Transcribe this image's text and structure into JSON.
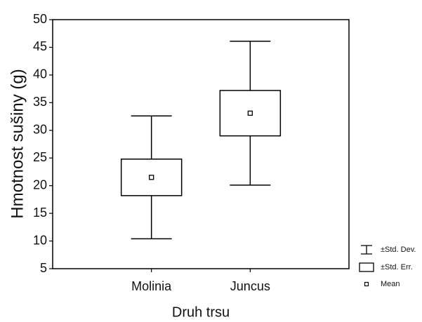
{
  "chart_data": {
    "type": "box",
    "y_label": "Hmotnost sušiny (g)",
    "x_label": "Druh trsu",
    "categories": [
      "Molinia",
      "Juncus"
    ],
    "mean": [
      21.5,
      33.1
    ],
    "se": [
      3.3,
      4.1
    ],
    "sd": [
      11.1,
      13.0
    ],
    "ylim": [
      5,
      50
    ],
    "yticks": [
      5,
      10,
      15,
      20,
      25,
      30,
      35,
      40,
      45,
      50
    ],
    "legend": [
      "±Std. Dev.",
      "±Std. Err.",
      "Mean"
    ],
    "color": "#000000"
  }
}
